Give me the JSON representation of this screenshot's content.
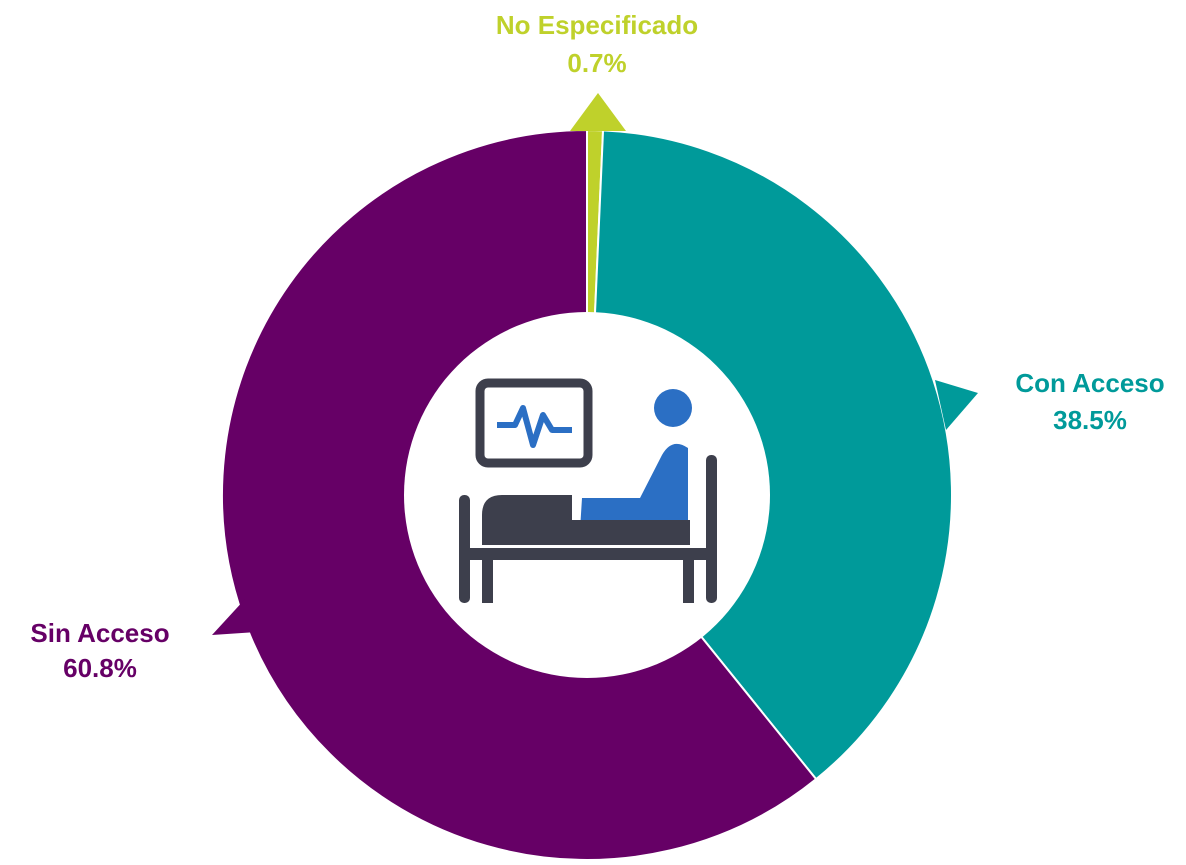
{
  "chart_data": {
    "type": "donut",
    "categories": [
      "No Especificado",
      "Con Acceso",
      "Sin Acceso"
    ],
    "values": [
      0.7,
      38.5,
      60.8
    ],
    "value_labels": [
      "0.7%",
      "38.5%",
      "60.8%"
    ],
    "colors": [
      "#bfd12b",
      "#009a9a",
      "#660066"
    ]
  }
}
